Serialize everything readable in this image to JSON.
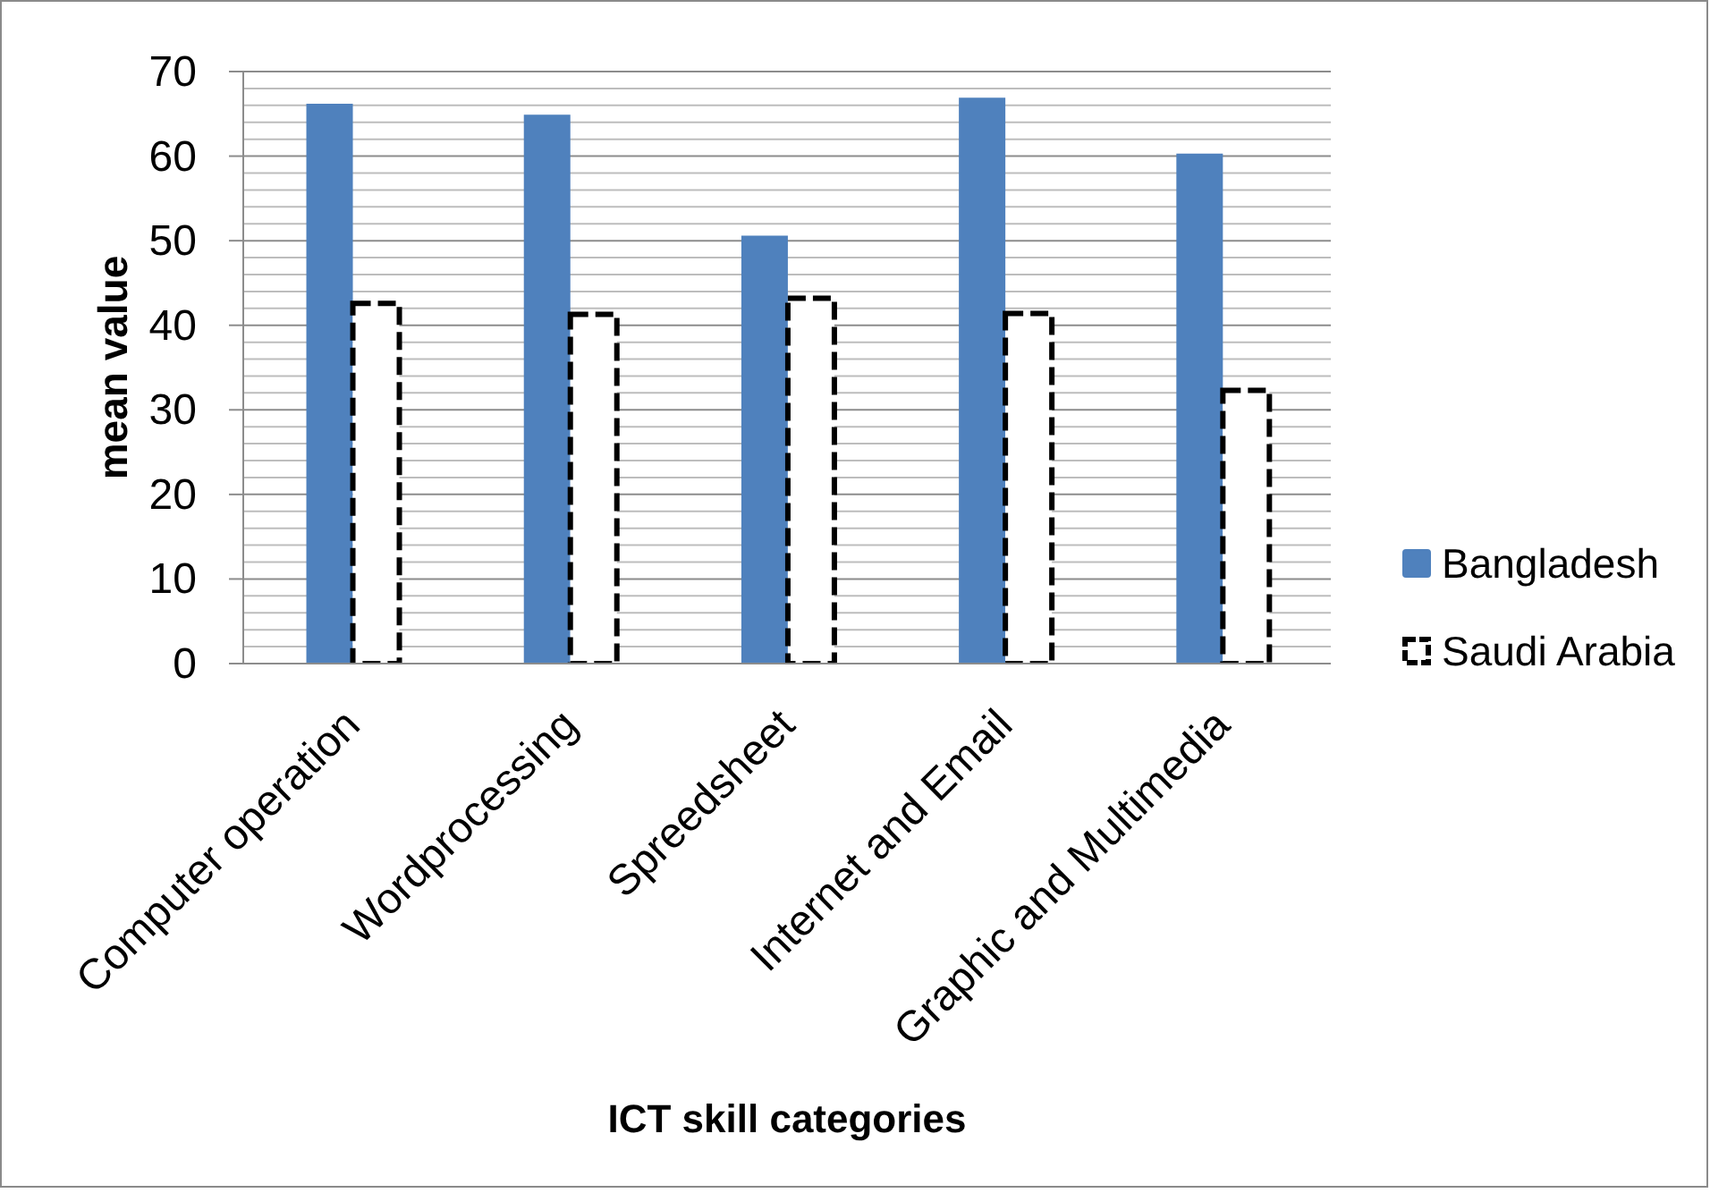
{
  "chart_data": {
    "type": "bar",
    "xlabel": "ICT skill categories",
    "ylabel": "mean value",
    "categories": [
      "Computer operation",
      "Wordprocessing",
      "Spreedsheet",
      "Internet and Email",
      "Graphic and Multimedia"
    ],
    "series": [
      {
        "name": "Bangladesh",
        "color": "#4f81bd",
        "values": [
          66.2,
          64.9,
          50.6,
          66.9,
          60.3
        ]
      },
      {
        "name": "Saudi Arabia",
        "color": "#000000",
        "line_style": "dashed",
        "values": [
          42.6,
          41.3,
          43.2,
          41.4,
          32.3
        ]
      }
    ],
    "ylim": [
      0,
      70
    ],
    "yticks": [
      0,
      {
        "value": 2,
        "label": null
      },
      {
        "value": 4,
        "label": null
      },
      {
        "value": 6,
        "label": null
      },
      {
        "value": 8,
        "label": null
      },
      10,
      {
        "value": 12,
        "label": null
      },
      {
        "value": 14,
        "label": null
      },
      {
        "value": 16,
        "label": null
      },
      {
        "value": 18,
        "label": null
      },
      20,
      {
        "value": 22,
        "label": null
      },
      {
        "value": 24,
        "label": null
      },
      {
        "value": 26,
        "label": null
      },
      {
        "value": 28,
        "label": null
      },
      30,
      {
        "value": 32,
        "label": null
      },
      {
        "value": 34,
        "label": null
      },
      {
        "value": 36,
        "label": null
      },
      {
        "value": 38,
        "label": null
      },
      40,
      {
        "value": 42,
        "label": null
      },
      {
        "value": 44,
        "label": null
      },
      {
        "value": 46,
        "label": null
      },
      {
        "value": 48,
        "label": null
      },
      50,
      {
        "value": 52,
        "label": null
      },
      {
        "value": 54,
        "label": null
      },
      {
        "value": 56,
        "label": null
      },
      {
        "value": 58,
        "label": null
      },
      60,
      {
        "value": 62,
        "label": null
      },
      {
        "value": 64,
        "label": null
      },
      {
        "value": 66,
        "label": null
      },
      {
        "value": 68,
        "label": null
      },
      70
    ],
    "grid": "y",
    "legend": "right"
  }
}
